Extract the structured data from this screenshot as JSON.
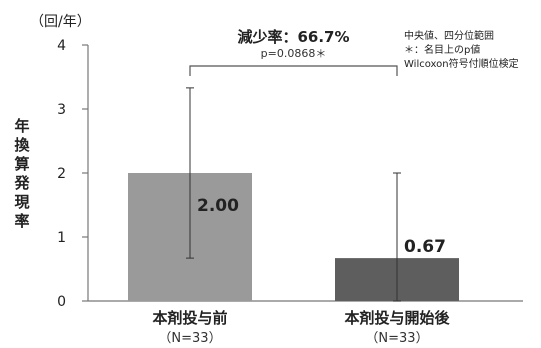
{
  "chart_data": {
    "type": "bar",
    "unit_label": "（回/年）",
    "ylabel": "年換算発現率",
    "categories": [
      "本剤投与前",
      "本剤投与開始後"
    ],
    "sublabels": [
      "（N=33）",
      "（N=33）"
    ],
    "values": [
      2.0,
      0.67
    ],
    "value_labels": [
      "2.00",
      "0.67"
    ],
    "error_low": [
      0.67,
      0.0
    ],
    "error_high": [
      3.33,
      2.0
    ],
    "ylim": [
      0,
      4
    ],
    "yticks": [
      0,
      1,
      2,
      3,
      4
    ],
    "bar_colors": [
      "#9a9a9a",
      "#5e5e5e"
    ],
    "comparison": {
      "title": "減少率：66.7%",
      "pvalue": "p=0.0868＊"
    },
    "notes": [
      "中央値、四分位範囲",
      "＊：名目上のp値",
      "Wilcoxon符号付順位検定"
    ],
    "grid": false,
    "legend": "none"
  }
}
